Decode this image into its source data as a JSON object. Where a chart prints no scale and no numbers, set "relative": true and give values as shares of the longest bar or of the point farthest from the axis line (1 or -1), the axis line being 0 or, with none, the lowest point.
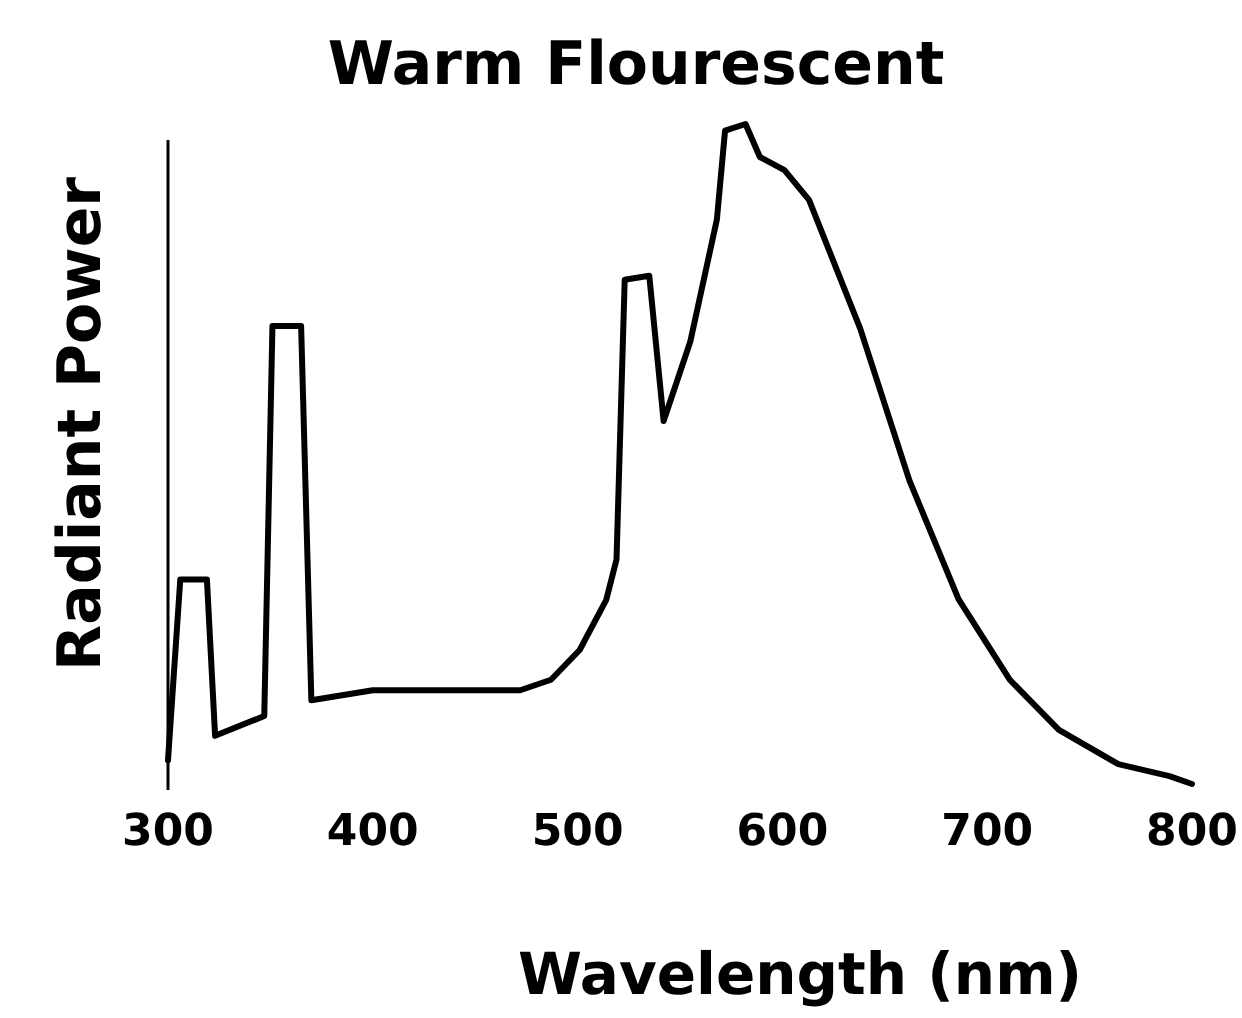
{
  "chart_data": {
    "type": "line",
    "title": "Warm Flourescent",
    "xlabel": "Wavelength (nm)",
    "ylabel": "Radiant Power",
    "relative": true,
    "xlim": [
      300,
      800
    ],
    "xticks": [
      300,
      400,
      500,
      600,
      700,
      800
    ],
    "x": [
      300,
      306,
      319,
      323,
      347,
      351,
      365,
      370,
      400,
      472,
      487,
      501,
      514,
      519,
      523,
      535,
      542,
      555,
      568,
      572,
      582,
      589,
      601,
      613,
      638,
      662,
      686,
      711,
      735,
      764,
      789,
      800
    ],
    "series": [
      {
        "color": "#000000",
        "values": [
          0.036,
          0.31,
          0.31,
          0.073,
          0.103,
          0.694,
          0.694,
          0.127,
          0.142,
          0.142,
          0.158,
          0.203,
          0.279,
          0.34,
          0.764,
          0.77,
          0.55,
          0.67,
          0.855,
          0.99,
          1.0,
          0.95,
          0.93,
          0.885,
          0.69,
          0.46,
          0.28,
          0.158,
          0.082,
          0.03,
          0.012,
          0
        ]
      }
    ]
  }
}
